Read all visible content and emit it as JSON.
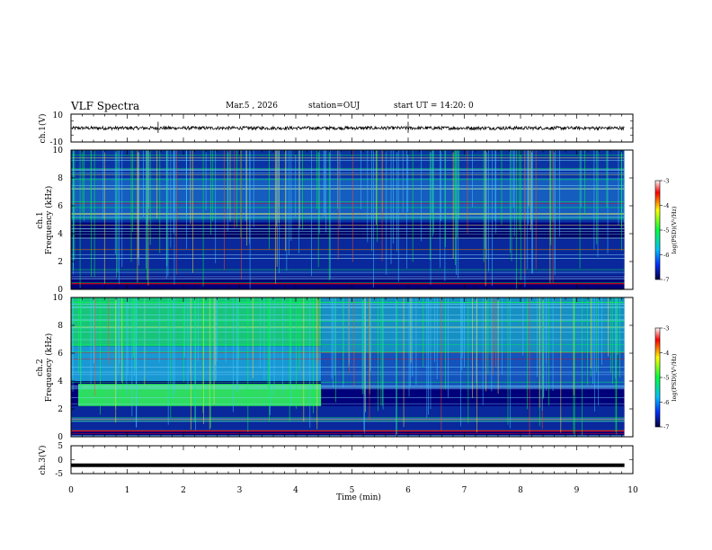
{
  "header": {
    "title": "VLF Spectra",
    "date": "Mar.5 , 2026",
    "station": "station=OUJ",
    "start_time": "start UT =  14:20: 0"
  },
  "chart_data": [
    {
      "type": "line",
      "id": "ch1_waveform",
      "ylabel": "ch.1(V)",
      "ylim": [
        -10,
        10
      ],
      "ytick_labels": [
        "10",
        "-10"
      ],
      "xlim": [
        0,
        10
      ],
      "series": [
        {
          "name": "ch.1 voltage",
          "mean": 0,
          "amplitude": 1.2
        }
      ],
      "spikes_min": [
        1.55,
        6.0
      ]
    },
    {
      "type": "heatmap",
      "id": "ch1_spectrogram",
      "ylabel": "ch.1\nFrequency (kHz)",
      "ylabel_lines": [
        "ch.1",
        "Frequency  (kHz)"
      ],
      "ylim": [
        0,
        10
      ],
      "ytick_labels": [
        "0",
        "2",
        "4",
        "6",
        "8",
        "10"
      ],
      "xlim": [
        0,
        10
      ],
      "data_end_min": 9.85,
      "colorbar": {
        "label": "log(PSD)(V²/Hz)",
        "range": [
          -7,
          -3
        ],
        "tick_labels": [
          "-3",
          "-4",
          "-5",
          "-6",
          "-7"
        ]
      }
    },
    {
      "type": "heatmap",
      "id": "ch2_spectrogram",
      "ylabel_lines": [
        "ch.2",
        "Frequency  (kHz)"
      ],
      "ylim": [
        0,
        10
      ],
      "ytick_labels": [
        "0",
        "2",
        "4",
        "6",
        "8",
        "10"
      ],
      "xlim": [
        0,
        10
      ],
      "data_end_min": 9.85,
      "transition_min": 4.45,
      "colorbar": {
        "label": "log(PSD)(V²/Hz)",
        "range": [
          -7,
          -3
        ],
        "tick_labels": [
          "-3",
          "-4",
          "-5",
          "-6",
          "-7"
        ]
      }
    },
    {
      "type": "line",
      "id": "ch3_waveform",
      "ylabel": "ch.3(V)",
      "ylim": [
        -5,
        5
      ],
      "ytick_labels": [
        "5",
        "0",
        "-5"
      ],
      "xlim": [
        0,
        10
      ],
      "series": [
        {
          "name": "ch.3 voltage",
          "value": -2
        }
      ]
    }
  ],
  "xaxis": {
    "label": "Time  (min)",
    "tick_labels": [
      "0",
      "1",
      "2",
      "3",
      "4",
      "5",
      "6",
      "7",
      "8",
      "9",
      "10"
    ]
  },
  "colors": {
    "spec_low": "#00007a",
    "spec_mid": "#1a6fd0",
    "spec_high": "#00ff40",
    "spec_peak": "#ff0000"
  }
}
